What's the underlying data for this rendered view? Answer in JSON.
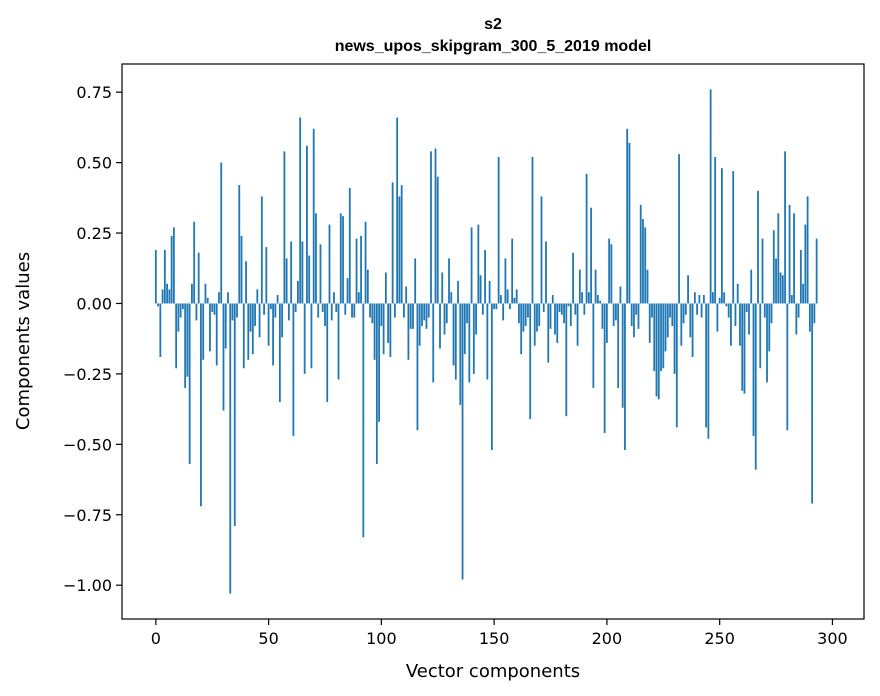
{
  "chart_data": {
    "type": "bar",
    "title": "s2",
    "subtitle": "news_upos_skipgram_300_5_2019 model",
    "xlabel": "Vector components",
    "ylabel": "Components values",
    "xlim": [
      -15,
      314
    ],
    "ylim": [
      -1.12,
      0.85
    ],
    "x_ticks": [
      0,
      50,
      100,
      150,
      200,
      250,
      300
    ],
    "x_tick_labels": [
      "0",
      "50",
      "100",
      "150",
      "200",
      "250",
      "300"
    ],
    "y_ticks": [
      -1.0,
      -0.75,
      -0.5,
      -0.25,
      0.0,
      0.25,
      0.5,
      0.75
    ],
    "y_tick_labels": [
      "−1.00",
      "−0.75",
      "−0.50",
      "−0.25",
      "0.00",
      "0.25",
      "0.50",
      "0.75"
    ],
    "grid": false,
    "bar_color": "#1f77b4",
    "values": [
      0.19,
      -0.01,
      -0.19,
      0.05,
      0.19,
      0.07,
      0.05,
      0.24,
      0.27,
      -0.23,
      -0.1,
      -0.05,
      -0.02,
      -0.3,
      -0.26,
      -0.57,
      0.07,
      0.29,
      -0.06,
      0.18,
      -0.72,
      -0.2,
      0.07,
      0.02,
      -0.17,
      -0.03,
      -0.04,
      -0.22,
      0.04,
      0.5,
      -0.38,
      -0.16,
      0.04,
      -1.03,
      -0.06,
      -0.79,
      -0.05,
      0.42,
      0.24,
      -0.23,
      0.15,
      -0.2,
      -0.1,
      -0.18,
      -0.08,
      0.05,
      -0.12,
      0.38,
      -0.04,
      0.2,
      -0.15,
      -0.02,
      -0.22,
      -0.05,
      0.03,
      -0.35,
      -0.12,
      0.54,
      0.16,
      -0.06,
      0.22,
      -0.47,
      -0.03,
      0.08,
      0.66,
      0.22,
      -0.25,
      0.56,
      0.17,
      -0.23,
      0.62,
      0.32,
      -0.05,
      0.21,
      -0.03,
      -0.08,
      -0.35,
      0.28,
      -0.06,
      0.04,
      -0.03,
      -0.27,
      0.32,
      0.31,
      -0.04,
      0.09,
      0.41,
      -0.05,
      -0.05,
      0.23,
      0.04,
      0.24,
      -0.83,
      0.29,
      0.12,
      -0.05,
      -0.07,
      -0.2,
      -0.57,
      -0.42,
      -0.08,
      -0.18,
      0.11,
      -0.14,
      -0.19,
      0.43,
      -0.05,
      0.66,
      0.38,
      0.42,
      -0.05,
      0.06,
      -0.2,
      -0.09,
      -0.09,
      0.16,
      -0.45,
      -0.15,
      -0.08,
      -0.06,
      -0.09,
      -0.05,
      0.54,
      -0.28,
      0.55,
      0.45,
      -0.16,
      0.11,
      -0.11,
      -0.07,
      0.16,
      0.04,
      -0.22,
      -0.27,
      0.08,
      -0.36,
      -0.98,
      -0.18,
      -0.07,
      -0.28,
      0.27,
      -0.25,
      -0.11,
      0.28,
      0.1,
      -0.04,
      0.19,
      -0.27,
      0.08,
      -0.52,
      -0.02,
      -0.02,
      0.52,
      0.03,
      -0.06,
      0.16,
      0.05,
      -0.02,
      0.23,
      0.02,
      0.05,
      -0.07,
      -0.18,
      -0.1,
      -0.08,
      -0.05,
      -0.41,
      0.52,
      -0.15,
      -0.1,
      -0.08,
      0.38,
      -0.03,
      0.22,
      -0.21,
      -0.09,
      0.03,
      -0.11,
      -0.14,
      -0.03,
      -0.04,
      -0.07,
      -0.4,
      -0.01,
      -0.08,
      0.18,
      -0.04,
      -0.15,
      0.12,
      0.04,
      -0.04,
      0.46,
      0.04,
      0.34,
      -0.3,
      0.12,
      0.03,
      0.01,
      -0.09,
      -0.46,
      -0.14,
      0.23,
      0.21,
      -0.08,
      -0.06,
      -0.3,
      0.06,
      -0.37,
      -0.52,
      0.62,
      0.57,
      -0.08,
      -0.12,
      -0.04,
      -0.09,
      0.35,
      0.3,
      0.27,
      0.12,
      -0.14,
      -0.05,
      -0.24,
      -0.33,
      -0.34,
      -0.24,
      -0.23,
      -0.17,
      -0.12,
      -0.05,
      -0.08,
      -0.25,
      -0.44,
      0.53,
      -0.15,
      -0.07,
      -0.04,
      0.1,
      -0.12,
      -0.19,
      0.04,
      -0.04,
      0.03,
      -0.05,
      0.03,
      -0.44,
      -0.48,
      0.76,
      0.04,
      0.52,
      -0.1,
      0.02,
      0.48,
      0.04,
      -0.01,
      -0.05,
      -0.15,
      0.47,
      -0.08,
      0.07,
      -0.15,
      -0.31,
      -0.32,
      -0.03,
      -0.11,
      0.12,
      -0.47,
      -0.59,
      0.4,
      -0.23,
      0.23,
      -0.05,
      -0.28,
      -0.17,
      -0.07,
      0.26,
      0.16,
      0.32,
      0.11,
      0.1,
      0.54,
      -0.45,
      0.35,
      0.03,
      0.32,
      -0.11,
      -0.05,
      0.19,
      0.07,
      0.28,
      0.38,
      -0.1,
      -0.71,
      -0.07,
      0.23
    ]
  }
}
